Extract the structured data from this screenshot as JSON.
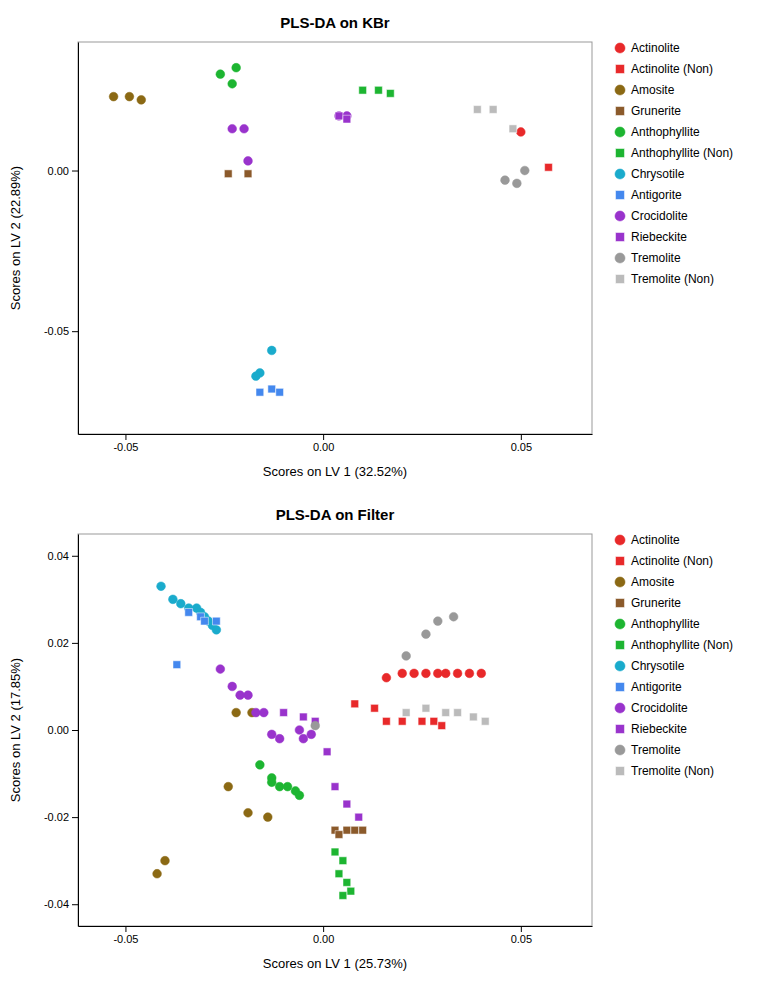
{
  "chart_data": [
    {
      "type": "scatter",
      "title": "PLS-DA on KBr",
      "xlabel": "Scores on LV 1 (32.52%)",
      "ylabel": "Scores on LV 2 (22.89%)",
      "xlim": [
        -0.062,
        0.068
      ],
      "ylim": [
        -0.082,
        0.04
      ],
      "xticks": [
        -0.05,
        {
          "value": 0,
          "label": "0.00"
        },
        0.05
      ],
      "yticks": [
        -0.05,
        {
          "value": 0,
          "label": "0.00"
        }
      ],
      "grid": false,
      "legend": "right",
      "series": [
        {
          "name": "Actinolite",
          "color": "#e8292a",
          "marker": "circle",
          "x": [
            0.05
          ],
          "values": [
            0.012
          ]
        },
        {
          "name": "Actinolite (Non)",
          "color": "#e8292a",
          "marker": "square",
          "x": [
            0.057
          ],
          "values": [
            0.001
          ]
        },
        {
          "name": "Amosite",
          "color": "#8B6914",
          "marker": "circle",
          "x": [
            -0.053,
            -0.049,
            -0.046
          ],
          "values": [
            0.023,
            0.023,
            0.022
          ]
        },
        {
          "name": "Grunerite",
          "color": "#8B5A2B",
          "marker": "square",
          "x": [
            -0.024,
            -0.019
          ],
          "values": [
            -0.001,
            -0.001
          ]
        },
        {
          "name": "Anthophyllite",
          "color": "#1db531",
          "marker": "circle",
          "x": [
            -0.026,
            -0.023,
            -0.022
          ],
          "values": [
            0.03,
            0.027,
            0.032
          ]
        },
        {
          "name": "Anthophyllite (Non)",
          "color": "#1db531",
          "marker": "square",
          "x": [
            0.01,
            0.014,
            0.017
          ],
          "values": [
            0.025,
            0.025,
            0.024
          ]
        },
        {
          "name": "Chrysotile",
          "color": "#1aabcc",
          "marker": "circle",
          "x": [
            -0.013,
            -0.016,
            -0.017
          ],
          "values": [
            -0.056,
            -0.063,
            -0.064
          ]
        },
        {
          "name": "Antigorite",
          "color": "#4488ee",
          "marker": "square",
          "x": [
            -0.013,
            -0.016,
            -0.011
          ],
          "values": [
            -0.068,
            -0.069,
            -0.069
          ]
        },
        {
          "name": "Crocidolite",
          "color": "#9933cc",
          "marker": "circle",
          "x": [
            -0.023,
            -0.02,
            -0.019,
            0.004,
            0.006
          ],
          "values": [
            0.013,
            0.013,
            0.003,
            0.017,
            0.017
          ]
        },
        {
          "name": "Riebeckite",
          "color": "#9933cc",
          "marker": "square",
          "x": [
            0.004,
            0.006
          ],
          "values": [
            0.017,
            0.016
          ]
        },
        {
          "name": "Tremolite",
          "color": "#999999",
          "marker": "circle",
          "x": [
            0.046,
            0.049,
            0.051
          ],
          "values": [
            -0.003,
            -0.004,
            0.0
          ]
        },
        {
          "name": "Tremolite (Non)",
          "color": "#bbbbbb",
          "marker": "square",
          "x": [
            0.039,
            0.043,
            0.048
          ],
          "values": [
            0.019,
            0.019,
            0.013
          ]
        }
      ]
    },
    {
      "type": "scatter",
      "title": "PLS-DA on Filter",
      "xlabel": "Scores on LV 1 (25.73%)",
      "ylabel": "Scores on LV 2 (17.85%)",
      "xlim": [
        -0.062,
        0.068
      ],
      "ylim": [
        -0.045,
        0.045
      ],
      "xticks": [
        -0.05,
        {
          "value": 0,
          "label": "0.00"
        },
        0.05
      ],
      "yticks": [
        -0.04,
        -0.02,
        {
          "value": 0,
          "label": "0.00"
        },
        0.02,
        0.04
      ],
      "grid": false,
      "legend": "right",
      "series": [
        {
          "name": "Actinolite",
          "color": "#e8292a",
          "marker": "circle",
          "x": [
            0.016,
            0.02,
            0.023,
            0.026,
            0.029,
            0.031,
            0.034,
            0.037,
            0.04
          ],
          "values": [
            0.012,
            0.013,
            0.013,
            0.013,
            0.013,
            0.013,
            0.013,
            0.013,
            0.013
          ]
        },
        {
          "name": "Actinolite (Non)",
          "color": "#e8292a",
          "marker": "square",
          "x": [
            0.008,
            0.013,
            0.016,
            0.02,
            0.025,
            0.028,
            0.03
          ],
          "values": [
            0.006,
            0.005,
            0.002,
            0.002,
            0.002,
            0.002,
            0.001
          ]
        },
        {
          "name": "Amosite",
          "color": "#8B6914",
          "marker": "circle",
          "x": [
            -0.022,
            -0.018,
            -0.024,
            -0.019,
            -0.014,
            -0.04,
            -0.042
          ],
          "values": [
            0.004,
            0.004,
            -0.013,
            -0.019,
            -0.02,
            -0.03,
            -0.033
          ]
        },
        {
          "name": "Grunerite",
          "color": "#8B5A2B",
          "marker": "square",
          "x": [
            0.003,
            0.006,
            0.008,
            0.01,
            0.004
          ],
          "values": [
            -0.023,
            -0.023,
            -0.023,
            -0.023,
            -0.024
          ]
        },
        {
          "name": "Anthophyllite",
          "color": "#1db531",
          "marker": "circle",
          "x": [
            -0.016,
            -0.013,
            -0.013,
            -0.011,
            -0.009,
            -0.007,
            -0.006
          ],
          "values": [
            -0.008,
            -0.011,
            -0.012,
            -0.013,
            -0.013,
            -0.014,
            -0.015
          ]
        },
        {
          "name": "Anthophyllite (Non)",
          "color": "#1db531",
          "marker": "square",
          "x": [
            0.003,
            0.005,
            0.004,
            0.006,
            0.007,
            0.005
          ],
          "values": [
            -0.028,
            -0.03,
            -0.033,
            -0.035,
            -0.037,
            -0.038
          ]
        },
        {
          "name": "Chrysotile",
          "color": "#1aabcc",
          "marker": "circle",
          "x": [
            -0.041,
            -0.038,
            -0.036,
            -0.034,
            -0.032,
            -0.031,
            -0.03,
            -0.029,
            -0.028,
            -0.027
          ],
          "values": [
            0.033,
            0.03,
            0.029,
            0.028,
            0.028,
            0.027,
            0.026,
            0.025,
            0.024,
            0.023
          ]
        },
        {
          "name": "Antigorite",
          "color": "#4488ee",
          "marker": "square",
          "x": [
            -0.034,
            -0.031,
            -0.03,
            -0.027,
            -0.037
          ],
          "values": [
            0.027,
            0.026,
            0.025,
            0.025,
            0.015
          ]
        },
        {
          "name": "Crocidolite",
          "color": "#9933cc",
          "marker": "circle",
          "x": [
            -0.026,
            -0.023,
            -0.021,
            -0.019,
            -0.017,
            -0.015,
            -0.013,
            -0.011,
            -0.006,
            -0.005,
            -0.003
          ],
          "values": [
            0.014,
            0.01,
            0.008,
            0.008,
            0.004,
            0.004,
            -0.001,
            -0.002,
            0.0,
            -0.002,
            -0.001
          ]
        },
        {
          "name": "Riebeckite",
          "color": "#9933cc",
          "marker": "square",
          "x": [
            -0.01,
            -0.005,
            -0.002,
            0.001,
            0.003,
            0.006,
            0.009
          ],
          "values": [
            0.004,
            0.003,
            0.002,
            -0.005,
            -0.013,
            -0.017,
            -0.02
          ]
        },
        {
          "name": "Tremolite",
          "color": "#999999",
          "marker": "circle",
          "x": [
            0.021,
            0.026,
            0.029,
            0.033,
            -0.002
          ],
          "values": [
            0.017,
            0.022,
            0.025,
            0.026,
            0.001
          ]
        },
        {
          "name": "Tremolite (Non)",
          "color": "#bbbbbb",
          "marker": "square",
          "x": [
            0.026,
            0.031,
            0.034,
            0.038,
            0.041,
            0.021
          ],
          "values": [
            0.005,
            0.004,
            0.004,
            0.003,
            0.002,
            0.004
          ]
        }
      ]
    }
  ]
}
